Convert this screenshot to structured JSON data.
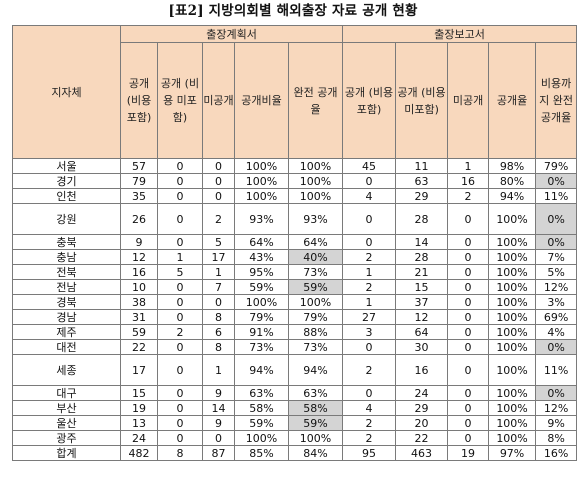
{
  "title": "[표2] 지방의회별 해외출장 자료 공개 현황",
  "header": {
    "region": "지자체",
    "group_plan": "출장계획서",
    "group_report": "출장보고서",
    "plan_cols": [
      "공개 (비용 포함)",
      "공개 (비용 미포함)",
      "미공개",
      "공개비율",
      "완전 공개율"
    ],
    "report_cols": [
      "공개 (비용 포함)",
      "공개 (비용 미포함)",
      "미공개",
      "공개율",
      "비용까지 완전 공개율"
    ]
  },
  "highlight_color": "#d4d4d4",
  "header_color": "#f8d8bd",
  "rows": [
    {
      "region": "서울",
      "p": [
        "57",
        "0",
        "0",
        "100%",
        "100%"
      ],
      "r": [
        "45",
        "11",
        "1",
        "98%",
        "79%"
      ],
      "gray": []
    },
    {
      "region": "경기",
      "p": [
        "79",
        "0",
        "0",
        "100%",
        "100%"
      ],
      "r": [
        "0",
        "63",
        "16",
        "80%",
        "0%"
      ],
      "gray": [
        "r4"
      ]
    },
    {
      "region": "인천",
      "p": [
        "35",
        "0",
        "0",
        "100%",
        "100%"
      ],
      "r": [
        "4",
        "29",
        "2",
        "94%",
        "11%"
      ],
      "gray": []
    },
    {
      "region": "강원",
      "p": [
        "26",
        "0",
        "2",
        "93%",
        "93%"
      ],
      "r": [
        "0",
        "28",
        "0",
        "100%",
        "0%"
      ],
      "gray": [
        "r4"
      ],
      "tall": true
    },
    {
      "region": "충북",
      "p": [
        "9",
        "0",
        "5",
        "64%",
        "64%"
      ],
      "r": [
        "0",
        "14",
        "0",
        "100%",
        "0%"
      ],
      "gray": [
        "r4"
      ]
    },
    {
      "region": "충남",
      "p": [
        "12",
        "1",
        "17",
        "43%",
        "40%"
      ],
      "r": [
        "2",
        "28",
        "0",
        "100%",
        "7%"
      ],
      "gray": [
        "p4"
      ]
    },
    {
      "region": "전북",
      "p": [
        "16",
        "5",
        "1",
        "95%",
        "73%"
      ],
      "r": [
        "1",
        "21",
        "0",
        "100%",
        "5%"
      ],
      "gray": []
    },
    {
      "region": "전남",
      "p": [
        "10",
        "0",
        "7",
        "59%",
        "59%"
      ],
      "r": [
        "2",
        "15",
        "0",
        "100%",
        "12%"
      ],
      "gray": [
        "p4"
      ]
    },
    {
      "region": "경북",
      "p": [
        "38",
        "0",
        "0",
        "100%",
        "100%"
      ],
      "r": [
        "1",
        "37",
        "0",
        "100%",
        "3%"
      ],
      "gray": []
    },
    {
      "region": "경남",
      "p": [
        "31",
        "0",
        "8",
        "79%",
        "79%"
      ],
      "r": [
        "27",
        "12",
        "0",
        "100%",
        "69%"
      ],
      "gray": []
    },
    {
      "region": "제주",
      "p": [
        "59",
        "2",
        "6",
        "91%",
        "88%"
      ],
      "r": [
        "3",
        "64",
        "0",
        "100%",
        "4%"
      ],
      "gray": []
    },
    {
      "region": "대전",
      "p": [
        "22",
        "0",
        "8",
        "73%",
        "73%"
      ],
      "r": [
        "0",
        "30",
        "0",
        "100%",
        "0%"
      ],
      "gray": [
        "r4"
      ]
    },
    {
      "region": "세종",
      "p": [
        "17",
        "0",
        "1",
        "94%",
        "94%"
      ],
      "r": [
        "2",
        "16",
        "0",
        "100%",
        "11%"
      ],
      "gray": [],
      "tall": true
    },
    {
      "region": "대구",
      "p": [
        "15",
        "0",
        "9",
        "63%",
        "63%"
      ],
      "r": [
        "0",
        "24",
        "0",
        "100%",
        "0%"
      ],
      "gray": [
        "r4"
      ]
    },
    {
      "region": "부산",
      "p": [
        "19",
        "0",
        "14",
        "58%",
        "58%"
      ],
      "r": [
        "4",
        "29",
        "0",
        "100%",
        "12%"
      ],
      "gray": [
        "p4"
      ]
    },
    {
      "region": "울산",
      "p": [
        "13",
        "0",
        "9",
        "59%",
        "59%"
      ],
      "r": [
        "2",
        "20",
        "0",
        "100%",
        "9%"
      ],
      "gray": [
        "p4"
      ]
    },
    {
      "region": "광주",
      "p": [
        "24",
        "0",
        "0",
        "100%",
        "100%"
      ],
      "r": [
        "2",
        "22",
        "0",
        "100%",
        "8%"
      ],
      "gray": []
    },
    {
      "region": "합계",
      "p": [
        "482",
        "8",
        "87",
        "85%",
        "84%"
      ],
      "r": [
        "95",
        "463",
        "19",
        "97%",
        "16%"
      ],
      "gray": []
    }
  ]
}
